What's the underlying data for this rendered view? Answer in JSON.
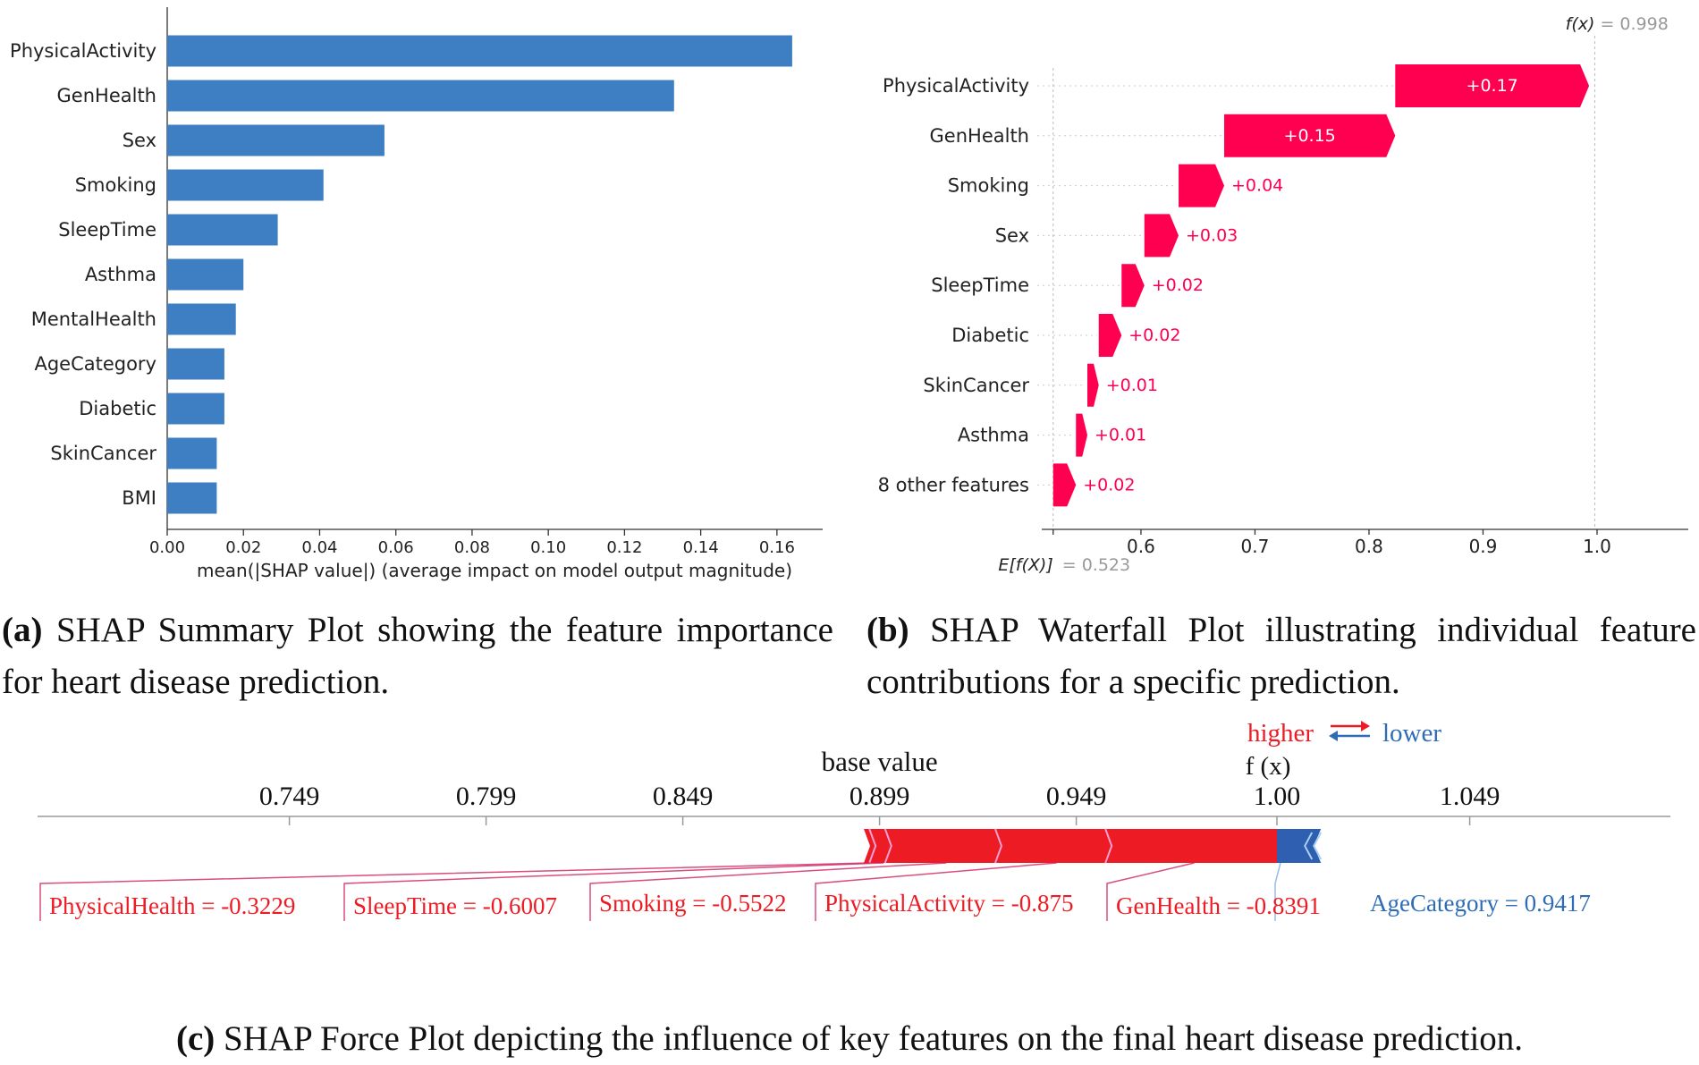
{
  "chart_data": [
    {
      "type": "bar",
      "orientation": "horizontal",
      "categories": [
        "PhysicalActivity",
        "GenHealth",
        "Sex",
        "Smoking",
        "SleepTime",
        "Asthma",
        "MentalHealth",
        "AgeCategory",
        "Diabetic",
        "SkinCancer",
        "BMI"
      ],
      "values": [
        0.164,
        0.133,
        0.057,
        0.041,
        0.029,
        0.02,
        0.018,
        0.015,
        0.015,
        0.013,
        0.013
      ],
      "xlabel": "mean(|SHAP value|) (average impact on model output magnitude)",
      "xlim": [
        0,
        0.172
      ],
      "xticks": [
        "0.00",
        "0.02",
        "0.04",
        "0.06",
        "0.08",
        "0.10",
        "0.12",
        "0.14",
        "0.16"
      ],
      "bar_color": "#3d7fc2",
      "caption_label": "(a)",
      "caption_text": "SHAP Summary Plot showing the feature importance for heart disease prediction."
    },
    {
      "type": "waterfall",
      "features": [
        "PhysicalActivity",
        "GenHealth",
        "Smoking",
        "Sex",
        "SleepTime",
        "Diabetic",
        "SkinCancer",
        "Asthma",
        "8 other features"
      ],
      "contributions": [
        0.17,
        0.15,
        0.04,
        0.03,
        0.02,
        0.02,
        0.01,
        0.01,
        0.02
      ],
      "contribution_labels": [
        "+0.17",
        "+0.15",
        "+0.04",
        "+0.03",
        "+0.02",
        "+0.02",
        "+0.01",
        "+0.01",
        "+0.02"
      ],
      "base_value": 0.523,
      "output_value": 0.998,
      "fx_name": "f(x)",
      "fx_value_text": "= 0.998",
      "ex_name": "E[f(X)]",
      "ex_value_text": "= 0.523",
      "xlim": [
        0.513,
        1.08
      ],
      "xticks": [
        "0.6",
        "0.7",
        "0.8",
        "0.9",
        "1.0"
      ],
      "positive_color": "#ff0051",
      "caption_label": "(b)",
      "caption_text": "SHAP Waterfall Plot illustrating individual feature contributions for a specific prediction."
    },
    {
      "type": "force",
      "base_value": 0.899,
      "output_value": 1.0,
      "axis_ticks": [
        "0.749",
        "0.799",
        "0.849",
        "0.899",
        "0.949",
        "1.00",
        "1.049"
      ],
      "xlim": [
        0.685,
        1.1
      ],
      "base_value_label": "base value",
      "fx_label": "f (x)",
      "higher_label": "higher",
      "lower_label": "lower",
      "positive_features": [
        {
          "label": "PhysicalHealth = -0.3229",
          "from": 0.895,
          "to": 0.898
        },
        {
          "label": "SleepTime = -0.6007",
          "from": 0.898,
          "to": 0.902
        },
        {
          "label": "Smoking = -0.5522",
          "from": 0.902,
          "to": 0.93
        },
        {
          "label": "PhysicalActivity = -0.875",
          "from": 0.93,
          "to": 0.958
        },
        {
          "label": "GenHealth = -0.8391",
          "from": 0.958,
          "to": 1.0
        }
      ],
      "negative_features": [
        {
          "label": "AgeCategory = 0.9417",
          "from": 1.0,
          "to": 1.008
        }
      ],
      "positive_color": "#ed1c24",
      "negative_color": "#2e5fb0",
      "caption_label": "(c)",
      "caption_text": "SHAP Force Plot depicting the influence of key features on the final heart disease prediction."
    }
  ]
}
